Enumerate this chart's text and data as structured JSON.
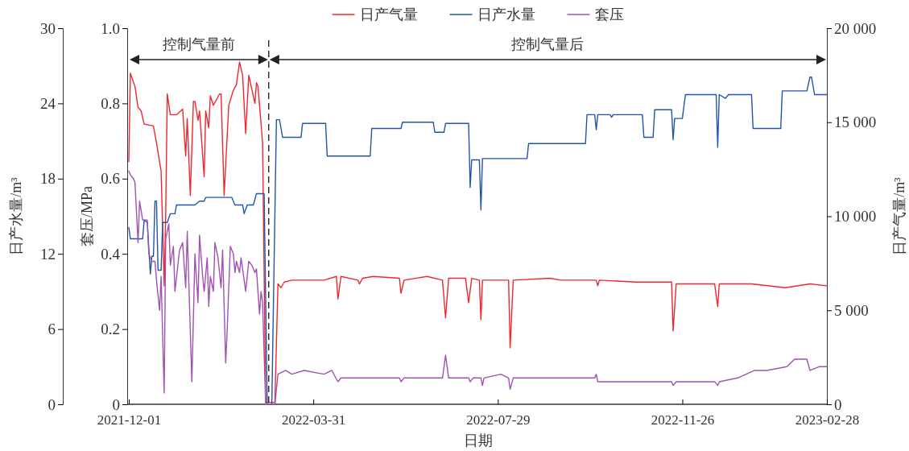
{
  "chart_data": {
    "type": "line",
    "xlabel": "日期",
    "ylabel": "日产水量/m³",
    "y2label": "日产气量/m³",
    "y3label": "套压/MPa",
    "xlim": [
      "2021-12-01",
      "2023-02-28"
    ],
    "xticks": [
      "2021-12-01",
      "2022-03-31",
      "2022-07-29",
      "2022-11-26",
      "2023-02-28"
    ],
    "ylim": [
      0,
      30
    ],
    "yticks": [
      0,
      6,
      12,
      18,
      24,
      30
    ],
    "y2lim": [
      0,
      20000
    ],
    "y2ticks": [
      {
        "value": 0,
        "label": "0"
      },
      {
        "value": 5000,
        "label": "5 000"
      },
      {
        "value": 10000,
        "label": "10 000"
      },
      {
        "value": 15000,
        "label": "15 000"
      },
      {
        "value": 20000,
        "label": "20 000"
      }
    ],
    "y3lim": [
      0,
      1
    ],
    "y3ticks": [
      {
        "value": 0,
        "label": "0"
      },
      {
        "value": 0.2,
        "label": "0.2"
      },
      {
        "value": 0.4,
        "label": "0.4"
      },
      {
        "value": 0.6,
        "label": "0.6"
      },
      {
        "value": 0.8,
        "label": "0.8"
      },
      {
        "value": 1,
        "label": "1.0"
      }
    ],
    "legend": "top",
    "annotations": [
      "控制气量前",
      "控制气量后"
    ],
    "ref_lines": [
      {
        "axis": "x",
        "value": "2022-03-02",
        "line_style": "dashed",
        "color": "#000000"
      }
    ],
    "series": [
      {
        "name": "日产气量",
        "color": "#f0282d",
        "axis": "y2",
        "x": [
          "2021-12-01",
          "2021-12-02",
          "2021-12-05",
          "2021-12-07",
          "2021-12-09",
          "2021-12-11",
          "2021-12-17",
          "2021-12-19",
          "2021-12-22",
          "2021-12-24",
          "2021-12-25",
          "2021-12-26",
          "2021-12-28",
          "2022-01-01",
          "2022-01-05",
          "2022-01-07",
          "2022-01-08",
          "2022-01-10",
          "2022-01-12",
          "2022-01-13",
          "2022-01-15",
          "2022-01-16",
          "2022-01-19",
          "2022-01-20",
          "2022-01-22",
          "2022-01-23",
          "2022-01-25",
          "2022-01-29",
          "2022-01-30",
          "2022-02-01",
          "2022-02-04",
          "2022-02-07",
          "2022-02-09",
          "2022-02-11",
          "2022-02-13",
          "2022-02-15",
          "2022-02-17",
          "2022-02-21",
          "2022-02-22",
          "2022-02-23",
          "2022-02-26",
          "2022-02-28",
          "2022-03-02",
          "2022-03-06",
          "2022-03-08",
          "2022-03-10",
          "2022-03-12",
          "2022-03-17",
          "2022-03-26",
          "2022-04-07",
          "2022-04-15",
          "2022-04-16",
          "2022-04-18",
          "2022-04-29",
          "2022-04-30",
          "2022-05-02",
          "2022-05-09",
          "2022-05-26",
          "2022-05-27",
          "2022-05-29",
          "2022-06-13",
          "2022-06-23",
          "2022-06-25",
          "2022-06-27",
          "2022-07-08",
          "2022-07-10",
          "2022-07-12",
          "2022-07-17",
          "2022-07-18",
          "2022-07-19",
          "2022-08-05",
          "2022-08-06",
          "2022-08-08",
          "2022-09-01",
          "2022-09-08",
          "2022-10-01",
          "2022-10-02",
          "2022-10-03",
          "2022-10-27",
          "2022-11-19",
          "2022-11-20",
          "2022-11-22",
          "2022-12-17",
          "2022-12-19",
          "2022-12-20",
          "2023-01-10",
          "2023-02-01",
          "2023-02-17",
          "2023-02-28"
        ],
        "values": [
          12900,
          17600,
          16900,
          15800,
          15600,
          14900,
          14800,
          13900,
          12400,
          6300,
          10200,
          16500,
          15400,
          15400,
          15700,
          13200,
          15200,
          11100,
          16100,
          16100,
          15100,
          15600,
          12100,
          15600,
          14700,
          16400,
          15900,
          16500,
          16500,
          11100,
          15900,
          16700,
          17000,
          18200,
          17500,
          14400,
          17500,
          16000,
          17100,
          16900,
          13900,
          100,
          100,
          100,
          6400,
          6200,
          6500,
          6600,
          6600,
          6600,
          6800,
          5600,
          6800,
          6600,
          6400,
          6700,
          6800,
          6700,
          5900,
          6600,
          6800,
          6600,
          4600,
          6700,
          6700,
          5400,
          6700,
          6600,
          4500,
          6600,
          6600,
          3000,
          6600,
          6700,
          6600,
          6600,
          6300,
          6600,
          6500,
          6500,
          3900,
          6400,
          6400,
          5200,
          6400,
          6400,
          6200,
          6400,
          6300
        ]
      },
      {
        "name": "日产水量",
        "color": "#2255aa",
        "axis": "y",
        "x": [
          "2021-12-01",
          "2021-12-02",
          "2021-12-10",
          "2021-12-11",
          "2021-12-13",
          "2021-12-15",
          "2021-12-16",
          "2021-12-17",
          "2021-12-18",
          "2021-12-19",
          "2021-12-20",
          "2021-12-22",
          "2021-12-23",
          "2021-12-26",
          "2021-12-28",
          "2021-12-31",
          "2022-01-01",
          "2022-01-13",
          "2022-01-16",
          "2022-01-19",
          "2022-01-20",
          "2022-02-06",
          "2022-02-08",
          "2022-02-13",
          "2022-02-14",
          "2022-02-16",
          "2022-02-20",
          "2022-02-22",
          "2022-02-27",
          "2022-03-01",
          "2022-03-04",
          "2022-03-07",
          "2022-03-09",
          "2022-03-11",
          "2022-03-23",
          "2022-03-24",
          "2022-04-08",
          "2022-04-09",
          "2022-05-07",
          "2022-05-08",
          "2022-05-27",
          "2022-05-28",
          "2022-06-17",
          "2022-06-18",
          "2022-06-24",
          "2022-06-25",
          "2022-07-10",
          "2022-07-11",
          "2022-07-12",
          "2022-07-17",
          "2022-07-18",
          "2022-07-19",
          "2022-08-17",
          "2022-08-18",
          "2022-09-24",
          "2022-09-25",
          "2022-09-30",
          "2022-10-01",
          "2022-10-02",
          "2022-10-10",
          "2022-10-11",
          "2022-10-12",
          "2022-10-31",
          "2022-11-01",
          "2022-11-07",
          "2022-11-08",
          "2022-11-19",
          "2022-11-20",
          "2022-11-21",
          "2022-11-26",
          "2022-11-28",
          "2022-12-18",
          "2022-12-19",
          "2022-12-20",
          "2022-12-24",
          "2022-12-26",
          "2023-01-10",
          "2023-01-11",
          "2023-01-29",
          "2023-01-30",
          "2023-02-15",
          "2023-02-17",
          "2023-02-18",
          "2023-02-20",
          "2023-02-28"
        ],
        "values": [
          14.1,
          13.2,
          13.2,
          14.7,
          14.5,
          10.4,
          11.8,
          11.8,
          16.2,
          16.2,
          10.7,
          10.7,
          14.5,
          14.5,
          15.2,
          15.2,
          15.9,
          15.9,
          16.2,
          16.2,
          16.5,
          16.5,
          15.9,
          15.9,
          15.2,
          15.9,
          15.9,
          16.8,
          16.8,
          0,
          0,
          22.7,
          22.7,
          21.3,
          21.3,
          22.4,
          22.4,
          19.8,
          19.8,
          22.0,
          22.0,
          22.5,
          22.5,
          21.7,
          21.7,
          22.4,
          22.4,
          17.3,
          19.5,
          19.5,
          15.5,
          19.6,
          19.6,
          20.8,
          20.8,
          23.1,
          23.1,
          21.9,
          23.1,
          23.1,
          22.9,
          23.1,
          23.1,
          21.3,
          21.3,
          23.5,
          23.5,
          21.1,
          22.8,
          22.8,
          24.7,
          24.7,
          20.5,
          24.7,
          24.4,
          24.7,
          24.7,
          22.0,
          22.0,
          25.0,
          25.0,
          26.1,
          26.1,
          24.7,
          24.7
        ]
      },
      {
        "name": "套压",
        "color": "#a052b0",
        "axis": "y3",
        "x": [
          "2021-12-01",
          "2021-12-02",
          "2021-12-04",
          "2021-12-05",
          "2021-12-07",
          "2021-12-08",
          "2021-12-10",
          "2021-12-13",
          "2021-12-14",
          "2021-12-16",
          "2021-12-18",
          "2021-12-19",
          "2021-12-21",
          "2021-12-22",
          "2021-12-24",
          "2021-12-25",
          "2021-12-27",
          "2021-12-28",
          "2021-12-30",
          "2021-12-31",
          "2022-01-03",
          "2022-01-05",
          "2022-01-07",
          "2022-01-08",
          "2022-01-11",
          "2022-01-13",
          "2022-01-15",
          "2022-01-16",
          "2022-01-18",
          "2022-01-19",
          "2022-01-21",
          "2022-01-22",
          "2022-01-23",
          "2022-01-25",
          "2022-01-26",
          "2022-01-28",
          "2022-01-30",
          "2022-01-31",
          "2022-02-02",
          "2022-02-03",
          "2022-02-05",
          "2022-02-07",
          "2022-02-08",
          "2022-02-09",
          "2022-02-11",
          "2022-02-12",
          "2022-02-14",
          "2022-02-15",
          "2022-02-17",
          "2022-02-19",
          "2022-02-21",
          "2022-02-22",
          "2022-02-24",
          "2022-02-25",
          "2022-02-26",
          "2022-02-28",
          "2022-03-06",
          "2022-03-08",
          "2022-03-13",
          "2022-03-17",
          "2022-03-25",
          "2022-04-07",
          "2022-04-12",
          "2022-04-16",
          "2022-04-18",
          "2022-05-09",
          "2022-05-26",
          "2022-05-27",
          "2022-05-29",
          "2022-06-23",
          "2022-06-25",
          "2022-06-27",
          "2022-07-10",
          "2022-07-11",
          "2022-07-13",
          "2022-07-18",
          "2022-07-19",
          "2022-07-20",
          "2022-07-31",
          "2022-08-05",
          "2022-08-06",
          "2022-08-08",
          "2022-09-08",
          "2022-09-30",
          "2022-10-01",
          "2022-10-02",
          "2022-10-27",
          "2022-11-19",
          "2022-11-20",
          "2022-11-22",
          "2022-12-17",
          "2022-12-19",
          "2022-12-20",
          "2023-01-01",
          "2023-01-12",
          "2023-01-20",
          "2023-02-02",
          "2023-02-07",
          "2023-02-15",
          "2023-02-17",
          "2023-02-23",
          "2023-02-28"
        ],
        "values": [
          0.62,
          0.61,
          0.6,
          0.59,
          0.43,
          0.54,
          0.49,
          0.49,
          0.4,
          0.38,
          0.38,
          0.33,
          0.25,
          0.34,
          0.03,
          0.44,
          0.48,
          0.37,
          0.42,
          0.3,
          0.41,
          0.43,
          0.31,
          0.46,
          0.06,
          0.4,
          0.27,
          0.45,
          0.34,
          0.3,
          0.39,
          0.26,
          0.34,
          0.3,
          0.43,
          0.39,
          0.31,
          0.41,
          0.11,
          0.2,
          0.42,
          0.4,
          0.35,
          0.38,
          0.35,
          0.39,
          0.33,
          0.3,
          0.38,
          0.37,
          0.35,
          0.36,
          0.24,
          0.3,
          0.27,
          0,
          0,
          0.08,
          0.09,
          0.08,
          0.09,
          0.08,
          0.09,
          0.06,
          0.07,
          0.07,
          0.07,
          0.06,
          0.07,
          0.07,
          0.13,
          0.07,
          0.07,
          0.06,
          0.07,
          0.07,
          0.05,
          0.07,
          0.08,
          0.07,
          0.04,
          0.07,
          0.07,
          0.07,
          0.08,
          0.06,
          0.06,
          0.06,
          0.05,
          0.06,
          0.06,
          0.05,
          0.06,
          0.07,
          0.09,
          0.09,
          0.1,
          0.12,
          0.12,
          0.09,
          0.1,
          0.1
        ]
      }
    ]
  }
}
